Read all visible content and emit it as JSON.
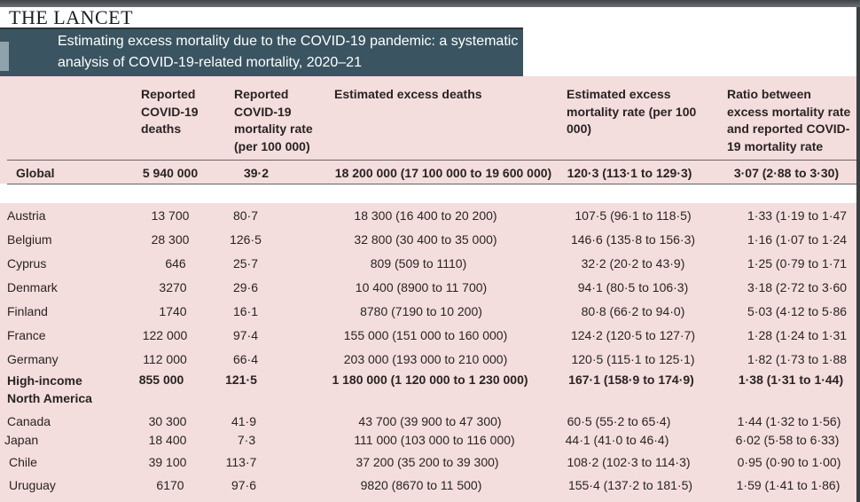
{
  "journal": "THE LANCET",
  "article_title": "Estimating excess mortality due to the COVID-19 pandemic: a systematic analysis of COVID-19-related mortality, 2020–21",
  "columns": [
    "Reported COVID-19 deaths",
    "Reported COVID-19 mortality rate (per 100 000)",
    "Estimated excess deaths",
    "Estimated excess mortality rate (per 100 000)",
    "Ratio between excess mortality rate and reported COVID-19 mortality rate"
  ],
  "rows": [
    {
      "name": "Global",
      "deaths": "5 940 000",
      "rate": "39·2",
      "excess": "18 200 000 (17 100 000 to 19 600 000)",
      "excess_rate": "120·3 (113·1 to 129·3)",
      "ratio": "3·07 (2·88 to 3·30)"
    },
    {
      "name": "Austria",
      "deaths": "13 700",
      "rate": "80·7",
      "excess": "18 300 (16 400 to 20 200)",
      "excess_rate": "107·5 (96·1 to 118·5)",
      "ratio": "1·33 (1·19 to 1·47"
    },
    {
      "name": "Belgium",
      "deaths": "28 300",
      "rate": "126·5",
      "excess": "32 800 (30 400 to 35 000)",
      "excess_rate": "146·6 (135·8 to 156·3)",
      "ratio": "1·16 (1·07 to 1·24"
    },
    {
      "name": "Cyprus",
      "deaths": "646",
      "rate": "25·7",
      "excess": "809 (509 to 1110)",
      "excess_rate": "32·2 (20·2 to 43·9)",
      "ratio": "1·25 (0·79 to 1·71"
    },
    {
      "name": "Denmark",
      "deaths": "3270",
      "rate": "29·6",
      "excess": "10 400 (8900 to 11 700)",
      "excess_rate": "94·1 (80·5 to 106·3)",
      "ratio": "3·18 (2·72 to 3·60"
    },
    {
      "name": "Finland",
      "deaths": "1740",
      "rate": "16·1",
      "excess": "8780 (7190 to 10 200)",
      "excess_rate": "80·8 (66·2 to 94·0)",
      "ratio": "5·03 (4·12 to 5·86"
    },
    {
      "name": "France",
      "deaths": "122 000",
      "rate": "97·4",
      "excess": "155 000 (151 000 to 160 000)",
      "excess_rate": "124·2 (120·5 to 127·7)",
      "ratio": "1·28 (1·24 to 1·31"
    },
    {
      "name": "Germany",
      "deaths": "112 000",
      "rate": "66·4",
      "excess": "203 000 (193 000 to 210 000)",
      "excess_rate": "120·5 (115·1 to 125·1)",
      "ratio": "1·82 (1·73 to 1·88"
    },
    {
      "name": "High-income North America",
      "deaths": "855 000",
      "rate": "121·5",
      "excess": "1 180 000 (1 120 000 to 1 230 000)",
      "excess_rate": "167·1 (158·9 to 174·9)",
      "ratio": "1·38 (1·31 to 1·44)"
    },
    {
      "name": "Canada",
      "deaths": "30 300",
      "rate": "41·9",
      "excess": "43 700 (39 900 to 47 300)",
      "excess_rate": "60·5 (55·2 to 65·4)",
      "ratio": "1·44 (1·32 to 1·56)"
    },
    {
      "name": "Japan",
      "deaths": "18 400",
      "rate": "7·3",
      "excess": "111 000 (103 000 to 116 000)",
      "excess_rate": "44·1 (41·0 to 46·4)",
      "ratio": "6·02 (5·58 to 6·33)"
    },
    {
      "name": "Chile",
      "deaths": "39 100",
      "rate": "113·7",
      "excess": "37 200 (35 200 to 39 300)",
      "excess_rate": "108·2 (102·3 to 114·3)",
      "ratio": "0·95 (0·90 to 1·00)"
    },
    {
      "name": "Uruguay",
      "deaths": "6170",
      "rate": "97·6",
      "excess": "9820 (8670 to 11 500)",
      "excess_rate": "155·4 (137·2 to 181·5)",
      "ratio": "1·59 (1·41 to 1·86)"
    }
  ]
}
